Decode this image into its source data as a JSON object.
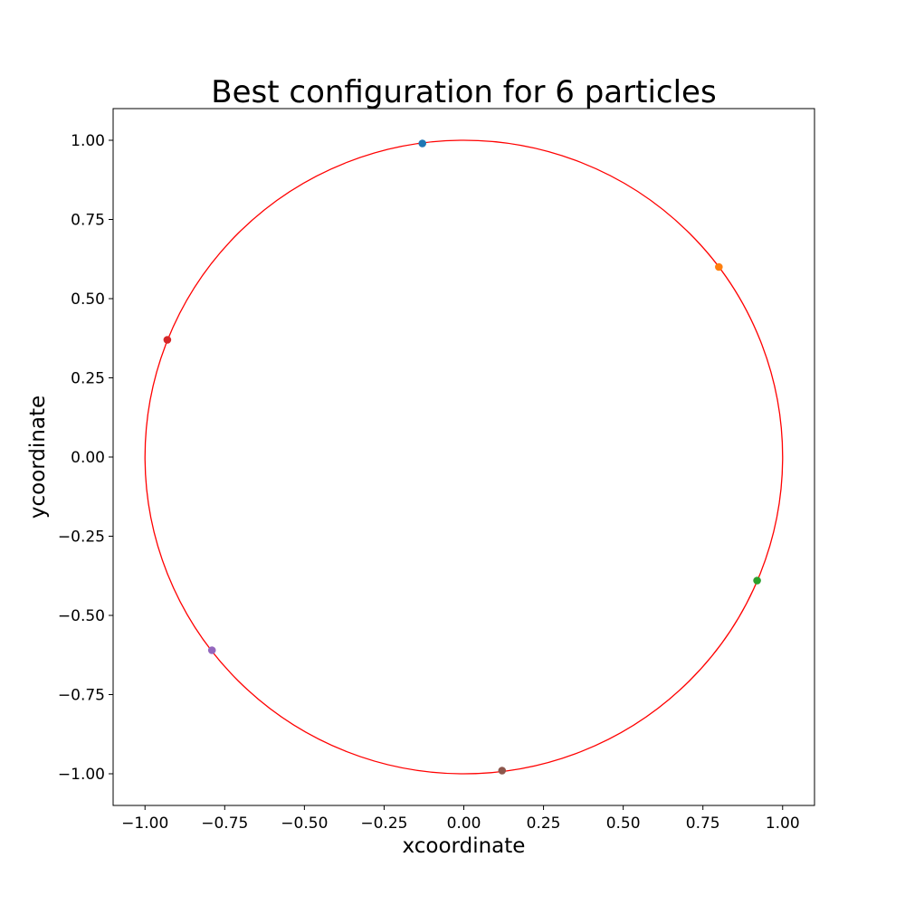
{
  "chart_data": {
    "type": "scatter",
    "title": "Best configuration for 6 particles",
    "xlabel": "xcoordinate",
    "ylabel": "ycoordinate",
    "xlim": [
      -1.1,
      1.1
    ],
    "ylim": [
      -1.1,
      1.1
    ],
    "xticks": [
      -1.0,
      -0.75,
      -0.5,
      -0.25,
      0.0,
      0.25,
      0.5,
      0.75,
      1.0
    ],
    "yticks": [
      -1.0,
      -0.75,
      -0.5,
      -0.25,
      0.0,
      0.25,
      0.5,
      0.75,
      1.0
    ],
    "xtick_labels": [
      "−1.00",
      "−0.75",
      "−0.50",
      "−0.25",
      "0.00",
      "0.25",
      "0.50",
      "0.75",
      "1.00"
    ],
    "ytick_labels": [
      "−1.00",
      "−0.75",
      "−0.50",
      "−0.25",
      "0.00",
      "0.25",
      "0.50",
      "0.75",
      "1.00"
    ],
    "grid": false,
    "circle": {
      "cx": 0,
      "cy": 0,
      "r": 1,
      "color": "#ff0000"
    },
    "points": [
      {
        "x": -0.13,
        "y": 0.99,
        "color": "#1f77b4"
      },
      {
        "x": 0.8,
        "y": 0.6,
        "color": "#ff7f0e"
      },
      {
        "x": 0.92,
        "y": -0.39,
        "color": "#2ca02c"
      },
      {
        "x": -0.93,
        "y": 0.37,
        "color": "#d62728"
      },
      {
        "x": -0.79,
        "y": -0.61,
        "color": "#9467bd"
      },
      {
        "x": 0.12,
        "y": -0.99,
        "color": "#8c564b"
      }
    ]
  }
}
